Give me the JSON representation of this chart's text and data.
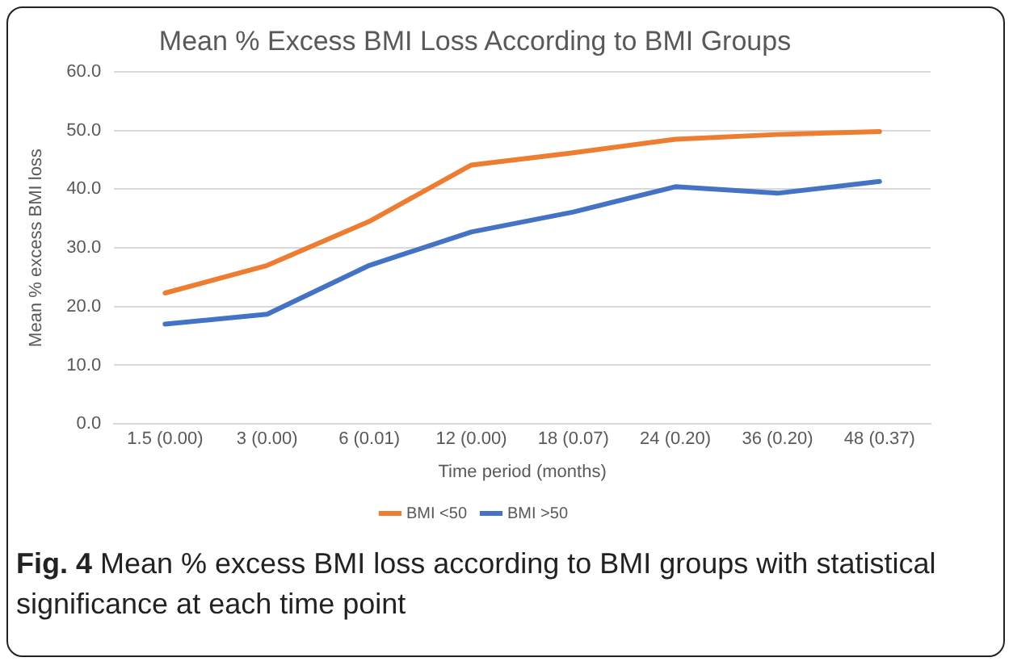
{
  "chart_data": {
    "type": "line",
    "title": "Mean % Excess BMI Loss According to BMI Groups",
    "xlabel": "Time period (months)",
    "ylabel": "Mean % excess BMI loss",
    "categories": [
      "1.5 (0.00)",
      "3 (0.00)",
      "6 (0.01)",
      "12 (0.00)",
      "18 (0.07)",
      "24 (0.20)",
      "36 (0.20)",
      "48 (0.37)"
    ],
    "series": [
      {
        "name": "BMI <50",
        "color": "#ed7d31",
        "values": [
          22.3,
          27.0,
          34.5,
          44.1,
          46.2,
          48.5,
          49.3,
          49.8
        ]
      },
      {
        "name": "BMI >50",
        "color": "#4472c4",
        "values": [
          17.0,
          18.7,
          27.0,
          32.7,
          36.1,
          40.4,
          39.3,
          41.3
        ]
      }
    ],
    "ylim": [
      0,
      60
    ],
    "yticks": [
      {
        "value": 0,
        "label": "0.0"
      },
      {
        "value": 10,
        "label": "10.0"
      },
      {
        "value": 20,
        "label": "20.0"
      },
      {
        "value": 30,
        "label": "30.0"
      },
      {
        "value": 40,
        "label": "40.0"
      },
      {
        "value": 50,
        "label": "50.0"
      },
      {
        "value": 60,
        "label": "60.0"
      }
    ],
    "grid": "y",
    "legend": "bottom",
    "marker": "none",
    "line_style": "solid",
    "annotations": [
      "Fig. 4 Mean % excess BMI loss according to BMI groups with statistical significance at each time point"
    ]
  }
}
